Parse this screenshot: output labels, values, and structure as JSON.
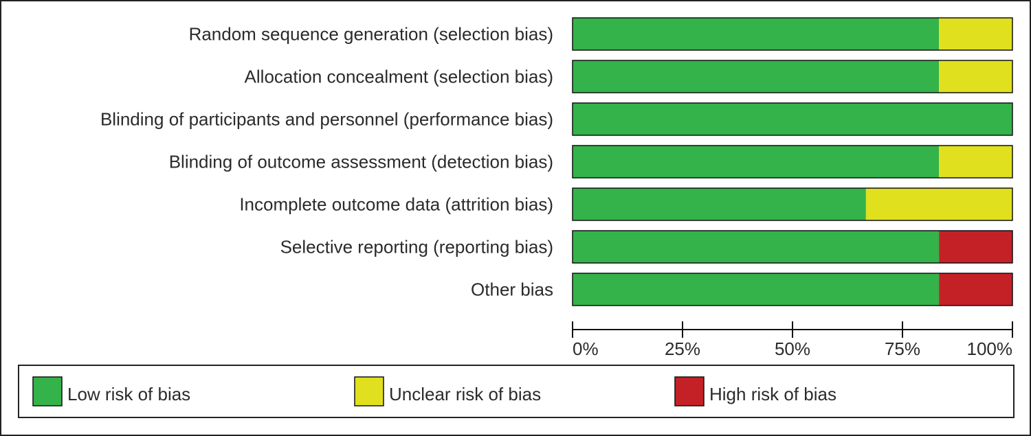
{
  "chart_data": {
    "type": "stacked-bar-horizontal",
    "categories": [
      "Random sequence generation (selection bias)",
      "Allocation concealment (selection bias)",
      "Blinding of participants and personnel (performance bias)",
      "Blinding of outcome assessment (detection bias)",
      "Incomplete outcome data (attrition bias)",
      "Selective reporting (reporting bias)",
      "Other bias"
    ],
    "series": [
      {
        "name": "Low risk of bias",
        "color": "#33b34a",
        "values": [
          83.3,
          83.3,
          100,
          83.3,
          66.7,
          83.3,
          83.3
        ]
      },
      {
        "name": "Unclear risk of bias",
        "color": "#e0e01e",
        "values": [
          16.7,
          16.7,
          0,
          16.7,
          33.3,
          0,
          0
        ]
      },
      {
        "name": "High risk of bias",
        "color": "#c42127",
        "values": [
          0,
          0,
          0,
          0,
          0,
          16.7,
          16.7
        ]
      }
    ],
    "xlim": [
      0,
      100
    ],
    "xticks": [
      {
        "value": 0,
        "label": "0%"
      },
      {
        "value": 25,
        "label": "25%"
      },
      {
        "value": 50,
        "label": "50%"
      },
      {
        "value": 75,
        "label": "75%"
      },
      {
        "value": 100,
        "label": "100%"
      }
    ]
  }
}
